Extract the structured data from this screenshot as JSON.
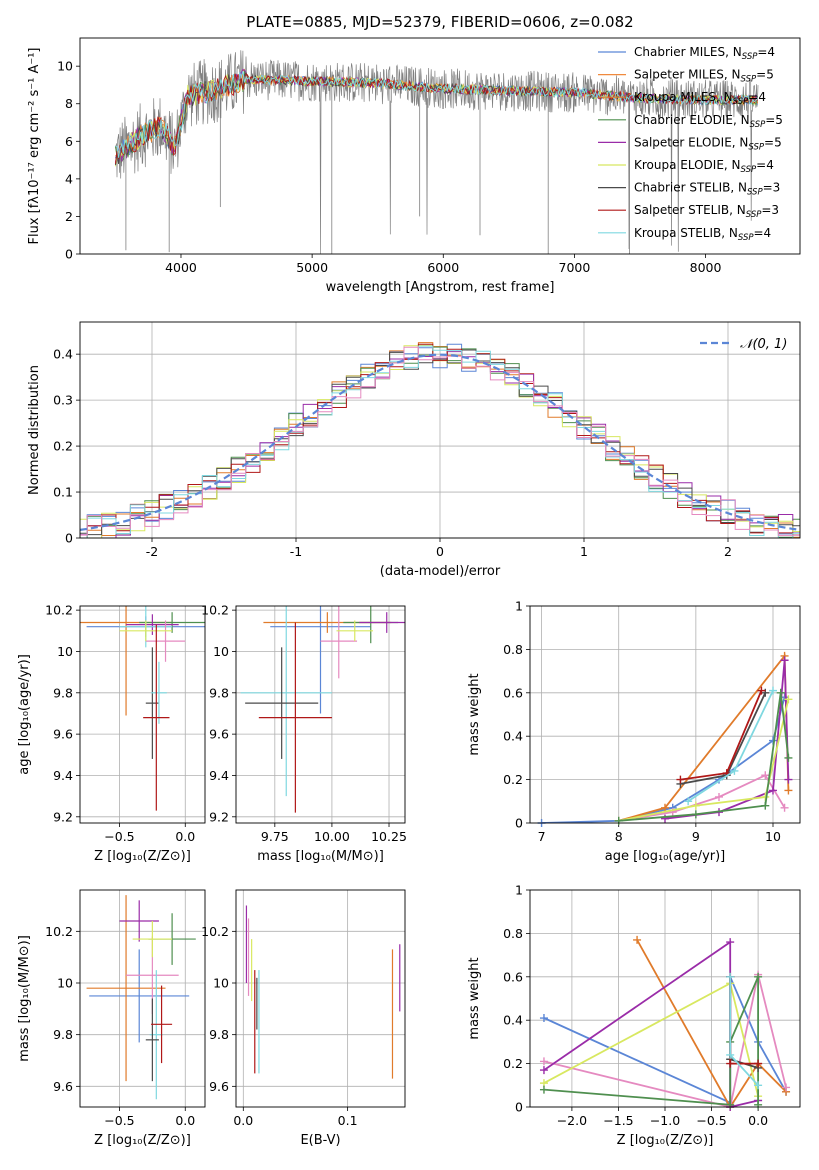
{
  "colors": {
    "Chabrier MILES": "#5b86d6",
    "Salpeter MILES": "#f08a3e",
    "Kroupa MILES": "#e07b2b",
    "Chabrier ELODIE": "#4f8f4f",
    "Salpeter ELODIE": "#9a2ca8",
    "Kroupa ELODIE": "#d8e860",
    "Chabrier STELIB": "#4a4a4a",
    "Salpeter STELIB": "#b01818",
    "Kroupa STELIB": "#7fd8e0",
    "pink": "#e58ac0",
    "data": "#808080"
  },
  "chart_data": [
    {
      "type": "line",
      "title": "PLATE=0885, MJD=52379, FIBERID=0606, z=0.082",
      "xlabel": "wavelength [Angstrom, rest frame]",
      "ylabel": "Flux [fλ10⁻¹⁷ erg cm⁻² s⁻¹ A⁻¹]",
      "xlim": [
        3230,
        8720
      ],
      "ylim": [
        0,
        11.5
      ],
      "xticks": [
        4000,
        5000,
        6000,
        7000,
        8000
      ],
      "yticks": [
        0,
        2,
        4,
        6,
        8,
        10
      ],
      "legend_position": "right",
      "legend": [
        {
          "name": "Chabrier MILES, N",
          "sub": "SSP",
          "tail": "=4",
          "color": "#5b86d6"
        },
        {
          "name": "Salpeter MILES, N",
          "sub": "SSP",
          "tail": "=5",
          "color": "#f08a3e"
        },
        {
          "name": "Kroupa MILES, N",
          "sub": "SSP",
          "tail": "=4",
          "color": "#e07b2b"
        },
        {
          "name": "Chabrier ELODIE, N",
          "sub": "SSP",
          "tail": "=5",
          "color": "#4f8f4f"
        },
        {
          "name": "Salpeter ELODIE, N",
          "sub": "SSP",
          "tail": "=5",
          "color": "#9a2ca8"
        },
        {
          "name": "Kroupa ELODIE, N",
          "sub": "SSP",
          "tail": "=4",
          "color": "#d8e860"
        },
        {
          "name": "Chabrier STELIB, N",
          "sub": "SSP",
          "tail": "=3",
          "color": "#4a4a4a"
        },
        {
          "name": "Salpeter STELIB, N",
          "sub": "SSP",
          "tail": "=3",
          "color": "#b01818"
        },
        {
          "name": "Kroupa STELIB, N",
          "sub": "SSP",
          "tail": "=4",
          "color": "#7fd8e0"
        }
      ],
      "model_continuum": [
        [
          3500,
          5.2
        ],
        [
          3700,
          6.3
        ],
        [
          3850,
          6.8
        ],
        [
          3950,
          5.6
        ],
        [
          4050,
          8.4
        ],
        [
          4300,
          8.8
        ],
        [
          4500,
          9.3
        ],
        [
          5000,
          9.2
        ],
        [
          5500,
          9.1
        ],
        [
          6000,
          8.8
        ],
        [
          6500,
          8.7
        ],
        [
          7000,
          8.6
        ],
        [
          7500,
          8.3
        ],
        [
          8000,
          8.2
        ],
        [
          8400,
          8.2
        ]
      ]
    },
    {
      "type": "line",
      "xlabel": "(data-model)/error",
      "ylabel": "Normed distribution",
      "xlim": [
        -2.5,
        2.5
      ],
      "ylim": [
        0,
        0.47
      ],
      "xticks": [
        -2,
        -1,
        0,
        1,
        2
      ],
      "yticks": [
        0.0,
        0.1,
        0.2,
        0.3,
        0.4
      ],
      "legend_label": "𝒩(0, 1)",
      "bin_width": 0.1
    },
    {
      "type": "scatter",
      "xlabel": "Z [log₁₀(Z/Z⊙)]",
      "ylabel": "age  [log₁₀(age/yr)]",
      "xlim": [
        -0.8,
        0.15
      ],
      "ylim": [
        9.17,
        10.22
      ],
      "xticks": [
        -0.5,
        0.0
      ],
      "xticklabels": [
        "−0.5",
        "0.0"
      ],
      "yticks": [
        9.2,
        9.4,
        9.6,
        9.8,
        10.0,
        10.2
      ],
      "points": [
        {
          "x": -0.3,
          "y": 10.12,
          "xerr": 0.45,
          "yerr": 0.05,
          "c": "#5b86d6"
        },
        {
          "x": -0.45,
          "y": 10.14,
          "xerr": 0.35,
          "yerr": 0.45,
          "c": "#e07b2b"
        },
        {
          "x": -0.1,
          "y": 10.14,
          "xerr": 0.25,
          "yerr": 0.05,
          "c": "#4f8f4f"
        },
        {
          "x": -0.25,
          "y": 10.13,
          "xerr": 0.2,
          "yerr": 0.05,
          "c": "#9a2ca8"
        },
        {
          "x": -0.3,
          "y": 10.12,
          "xerr": 0.2,
          "yerr": 0.1,
          "c": "#7fd8e0"
        },
        {
          "x": -0.15,
          "y": 10.05,
          "xerr": 0.15,
          "yerr": 0.1,
          "c": "#e58ac0"
        },
        {
          "x": -0.3,
          "y": 10.1,
          "xerr": 0.2,
          "yerr": 0.05,
          "c": "#d8e860"
        },
        {
          "x": -0.25,
          "y": 9.75,
          "xerr": 0.05,
          "yerr": 0.27,
          "c": "#4a4a4a"
        },
        {
          "x": -0.2,
          "y": 9.8,
          "xerr": 0.06,
          "yerr": 0.15,
          "c": "#7fd8e0"
        },
        {
          "x": -0.22,
          "y": 9.68,
          "xerr": 0.1,
          "yerr": 0.45,
          "c": "#b01818"
        }
      ]
    },
    {
      "type": "scatter",
      "xlabel": "mass [log₁₀(M/M⊙)]",
      "ylabel": "",
      "xlim": [
        9.58,
        10.32
      ],
      "ylim": [
        9.17,
        10.22
      ],
      "xticks": [
        9.75,
        10.0,
        10.25
      ],
      "xticklabels": [
        "9.75",
        "10.00",
        "10.25"
      ],
      "yticks": [
        9.2,
        9.4,
        9.6,
        9.8,
        10.0,
        10.2
      ],
      "points": [
        {
          "x": 9.95,
          "y": 10.12,
          "xerr": 0.22,
          "yerr": 0.42,
          "c": "#5b86d6"
        },
        {
          "x": 9.98,
          "y": 10.14,
          "xerr": 0.28,
          "yerr": 0.05,
          "c": "#e07b2b"
        },
        {
          "x": 10.17,
          "y": 10.14,
          "xerr": 0.12,
          "yerr": 0.1,
          "c": "#4f8f4f"
        },
        {
          "x": 10.24,
          "y": 10.14,
          "xerr": 0.12,
          "yerr": 0.05,
          "c": "#9a2ca8"
        },
        {
          "x": 10.03,
          "y": 10.05,
          "xerr": 0.08,
          "yerr": 0.18,
          "c": "#e58ac0"
        },
        {
          "x": 10.1,
          "y": 10.1,
          "xerr": 0.08,
          "yerr": 0.05,
          "c": "#d8e860"
        },
        {
          "x": 9.8,
          "y": 9.8,
          "xerr": 0.2,
          "yerr": 0.5,
          "c": "#7fd8e0"
        },
        {
          "x": 9.78,
          "y": 9.75,
          "xerr": 0.16,
          "yerr": 0.27,
          "c": "#4a4a4a"
        },
        {
          "x": 9.84,
          "y": 9.68,
          "xerr": 0.16,
          "yerr": 0.46,
          "c": "#b01818"
        }
      ]
    },
    {
      "type": "line",
      "xlabel": "age  [log₁₀(age/yr)]",
      "ylabel": "mass weight",
      "xlim": [
        6.85,
        10.35
      ],
      "ylim": [
        0,
        1.0
      ],
      "xticks": [
        7,
        8,
        9,
        10
      ],
      "yticks": [
        0.0,
        0.2,
        0.4,
        0.6,
        0.8,
        1.0
      ],
      "series": [
        {
          "c": "#5b86d6",
          "x": [
            7.0,
            8.0,
            8.7,
            9.3,
            10.0,
            10.15
          ],
          "y": [
            0.0,
            0.01,
            0.07,
            0.2,
            0.38,
            0.58
          ]
        },
        {
          "c": "#e07b2b",
          "x": [
            8.0,
            8.6,
            10.15,
            10.2
          ],
          "y": [
            0.01,
            0.07,
            0.77,
            0.15
          ]
        },
        {
          "c": "#e58ac0",
          "x": [
            8.0,
            8.7,
            9.3,
            9.9,
            10.15
          ],
          "y": [
            0.01,
            0.05,
            0.12,
            0.22,
            0.07
          ]
        },
        {
          "c": "#9a2ca8",
          "x": [
            8.6,
            9.3,
            10.0,
            10.15,
            10.2
          ],
          "y": [
            0.02,
            0.05,
            0.15,
            0.75,
            0.2
          ]
        },
        {
          "c": "#d8e860",
          "x": [
            8.0,
            9.0,
            9.9,
            10.2
          ],
          "y": [
            0.01,
            0.08,
            0.12,
            0.57
          ]
        },
        {
          "c": "#4f8f4f",
          "x": [
            8.0,
            9.0,
            9.9,
            10.1,
            10.2
          ],
          "y": [
            0.01,
            0.04,
            0.08,
            0.6,
            0.3
          ]
        },
        {
          "c": "#4a4a4a",
          "x": [
            8.8,
            9.4,
            9.9
          ],
          "y": [
            0.18,
            0.22,
            0.6
          ]
        },
        {
          "c": "#b01818",
          "x": [
            8.8,
            9.4,
            9.85
          ],
          "y": [
            0.2,
            0.23,
            0.61
          ]
        },
        {
          "c": "#7fd8e0",
          "x": [
            8.9,
            9.5,
            10.0
          ],
          "y": [
            0.1,
            0.24,
            0.61
          ]
        }
      ]
    },
    {
      "type": "scatter",
      "xlabel": "Z [log₁₀(Z/Z⊙)]",
      "ylabel": "mass [log₁₀(M/M⊙)]",
      "xlim": [
        -0.8,
        0.15
      ],
      "ylim": [
        9.52,
        10.36
      ],
      "xticks": [
        -0.5,
        0.0
      ],
      "xticklabels": [
        "−0.5",
        "0.0"
      ],
      "yticks": [
        9.6,
        9.8,
        10.0,
        10.2
      ],
      "points": [
        {
          "x": -0.35,
          "y": 9.95,
          "xerr": 0.38,
          "yerr": 0.18,
          "c": "#5b86d6"
        },
        {
          "x": -0.45,
          "y": 9.98,
          "xerr": 0.3,
          "yerr": 0.36,
          "c": "#e07b2b"
        },
        {
          "x": -0.1,
          "y": 10.17,
          "xerr": 0.18,
          "yerr": 0.1,
          "c": "#4f8f4f"
        },
        {
          "x": -0.35,
          "y": 10.24,
          "xerr": 0.15,
          "yerr": 0.08,
          "c": "#9a2ca8"
        },
        {
          "x": -0.25,
          "y": 10.03,
          "xerr": 0.2,
          "yerr": 0.15,
          "c": "#e58ac0"
        },
        {
          "x": -0.25,
          "y": 10.17,
          "xerr": 0.15,
          "yerr": 0.07,
          "c": "#d8e860"
        },
        {
          "x": -0.22,
          "y": 9.8,
          "xerr": 0.05,
          "yerr": 0.25,
          "c": "#7fd8e0"
        },
        {
          "x": -0.25,
          "y": 9.78,
          "xerr": 0.05,
          "yerr": 0.16,
          "c": "#4a4a4a"
        },
        {
          "x": -0.18,
          "y": 9.84,
          "xerr": 0.08,
          "yerr": 0.15,
          "c": "#b01818"
        }
      ]
    },
    {
      "type": "scatter",
      "xlabel": "E(B-V)",
      "ylabel": "",
      "xlim": [
        -0.007,
        0.155
      ],
      "ylim": [
        9.52,
        10.36
      ],
      "xticks": [
        0.0,
        0.1
      ],
      "xticklabels": [
        "0.0",
        "0.1"
      ],
      "yticks": [
        9.6,
        9.8,
        10.0,
        10.2
      ],
      "points": [
        {
          "x": 0.003,
          "y": 10.15,
          "xerr": 0,
          "yerr": 0.15,
          "c": "#9a2ca8"
        },
        {
          "x": 0.005,
          "y": 10.1,
          "xerr": 0,
          "yerr": 0.15,
          "c": "#e58ac0"
        },
        {
          "x": 0.008,
          "y": 10.05,
          "xerr": 0,
          "yerr": 0.12,
          "c": "#d8e860"
        },
        {
          "x": 0.011,
          "y": 9.85,
          "xerr": 0,
          "yerr": 0.2,
          "c": "#b01818"
        },
        {
          "x": 0.013,
          "y": 9.92,
          "xerr": 0,
          "yerr": 0.1,
          "c": "#4a4a4a"
        },
        {
          "x": 0.015,
          "y": 9.85,
          "xerr": 0,
          "yerr": 0.2,
          "c": "#7fd8e0"
        },
        {
          "x": 0.143,
          "y": 9.88,
          "xerr": 0,
          "yerr": 0.25,
          "c": "#e07b2b"
        },
        {
          "x": 0.15,
          "y": 10.02,
          "xerr": 0,
          "yerr": 0.13,
          "c": "#9a2ca8"
        }
      ]
    },
    {
      "type": "line",
      "xlabel": "Z [log₁₀(Z/Z⊙)]",
      "ylabel": "mass weight",
      "xlim": [
        -2.45,
        0.45
      ],
      "ylim": [
        0,
        1.0
      ],
      "xticks": [
        -2.0,
        -1.5,
        -1.0,
        -0.5,
        0.0
      ],
      "xticklabels": [
        "−2.0",
        "−1.5",
        "−1.0",
        "−0.5",
        "0.0"
      ],
      "yticks": [
        0.0,
        0.2,
        0.4,
        0.6,
        0.8,
        1.0
      ],
      "series": [
        {
          "c": "#5b86d6",
          "x": [
            -2.3,
            -0.3,
            -0.3,
            0.0,
            0.3
          ],
          "y": [
            0.41,
            0.02,
            0.6,
            0.3,
            0.07
          ]
        },
        {
          "c": "#e07b2b",
          "x": [
            -1.3,
            -0.3,
            0.0,
            0.3
          ],
          "y": [
            0.77,
            0.0,
            0.2,
            0.07
          ]
        },
        {
          "c": "#e58ac0",
          "x": [
            -2.3,
            -0.3,
            0.0,
            0.3
          ],
          "y": [
            0.21,
            0.0,
            0.61,
            0.09
          ]
        },
        {
          "c": "#9a2ca8",
          "x": [
            -2.3,
            -0.3,
            -0.3,
            0.0
          ],
          "y": [
            0.17,
            0.76,
            0.0,
            0.03
          ]
        },
        {
          "c": "#d8e860",
          "x": [
            -2.3,
            -0.3,
            0.0
          ],
          "y": [
            0.11,
            0.57,
            0.05
          ]
        },
        {
          "c": "#4f8f4f",
          "x": [
            -2.3,
            -0.3,
            -0.3,
            0.0,
            0.0
          ],
          "y": [
            0.08,
            0.01,
            0.3,
            0.6,
            0.01
          ]
        },
        {
          "c": "#4a4a4a",
          "x": [
            -0.3,
            -0.3,
            0.0
          ],
          "y": [
            0.6,
            0.22,
            0.18
          ]
        },
        {
          "c": "#b01818",
          "x": [
            -0.3,
            -0.3,
            0.0
          ],
          "y": [
            0.6,
            0.2,
            0.2
          ]
        },
        {
          "c": "#7fd8e0",
          "x": [
            -0.3,
            -0.3,
            0.0
          ],
          "y": [
            0.6,
            0.24,
            0.1
          ]
        }
      ]
    }
  ]
}
